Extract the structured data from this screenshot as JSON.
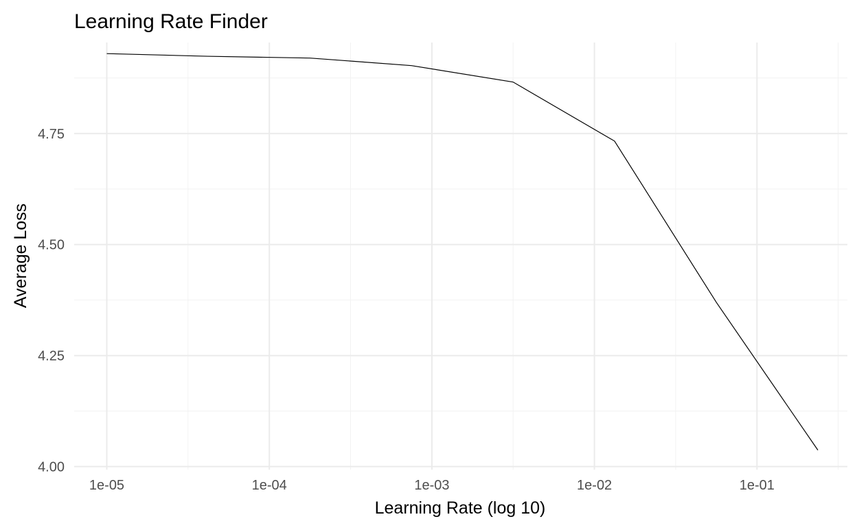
{
  "chart_data": {
    "type": "line",
    "title": "Learning Rate Finder",
    "xlabel": "Learning Rate (log 10)",
    "ylabel": "Average Loss",
    "x_scale": "log10",
    "xlim": [
      6.3e-06,
      0.36
    ],
    "ylim": [
      3.993,
      4.955
    ],
    "x_ticks": [
      {
        "value": 1e-05,
        "label": "1e-05"
      },
      {
        "value": 0.0001,
        "label": "1e-04"
      },
      {
        "value": 0.001,
        "label": "1e-03"
      },
      {
        "value": 0.01,
        "label": "1e-02"
      },
      {
        "value": 0.1,
        "label": "1e-01"
      }
    ],
    "x_minor_ticks": [
      3.16e-05,
      0.000316,
      0.00316,
      0.0316,
      0.316
    ],
    "y_ticks": [
      {
        "value": 4.0,
        "label": "4.00"
      },
      {
        "value": 4.25,
        "label": "4.25"
      },
      {
        "value": 4.5,
        "label": "4.50"
      },
      {
        "value": 4.75,
        "label": "4.75"
      }
    ],
    "y_minor_ticks": [
      4.125,
      4.375,
      4.625,
      4.875
    ],
    "grid": true,
    "legend": "none",
    "series": [
      {
        "color": "#000000",
        "x": [
          1e-05,
          4.16e-05,
          0.000178,
          0.000749,
          0.00316,
          0.0133,
          0.0562,
          0.237
        ],
        "y": [
          4.93,
          4.924,
          4.92,
          4.903,
          4.866,
          4.733,
          4.37,
          4.037
        ]
      }
    ]
  }
}
